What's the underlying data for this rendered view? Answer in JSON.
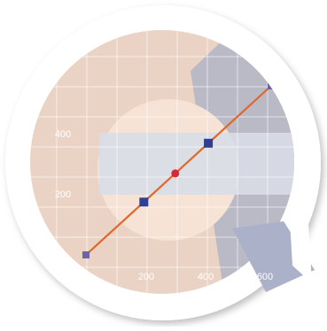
{
  "logo": {
    "name": "Q-shaped plot icon",
    "colors": {
      "orange_light": "#f3c9a3",
      "orange_mid": "#f2b890",
      "orange_tint": "#ead3c4",
      "blue_light": "#d9dde7",
      "blue_mid": "#aab1c8",
      "center_disk": "#f6e3d5",
      "line": "#e0662a",
      "marker_square": "#2f3f91",
      "marker_end": "#6b66a3",
      "marker_center": "#d3293a",
      "grid": "#ffffff",
      "tick_text": "#ffffff"
    }
  },
  "chart_data": {
    "type": "line",
    "x_ticks": [
      "200",
      "400",
      "600"
    ],
    "y_ticks": [
      "200",
      "400"
    ],
    "x": [
      0,
      175,
      370,
      560
    ],
    "y": [
      0,
      175,
      370,
      560
    ],
    "center_point": {
      "x": 270,
      "y": 270
    },
    "xlim": [
      -55,
      650
    ],
    "ylim": [
      -30,
      650
    ],
    "grid": true
  }
}
